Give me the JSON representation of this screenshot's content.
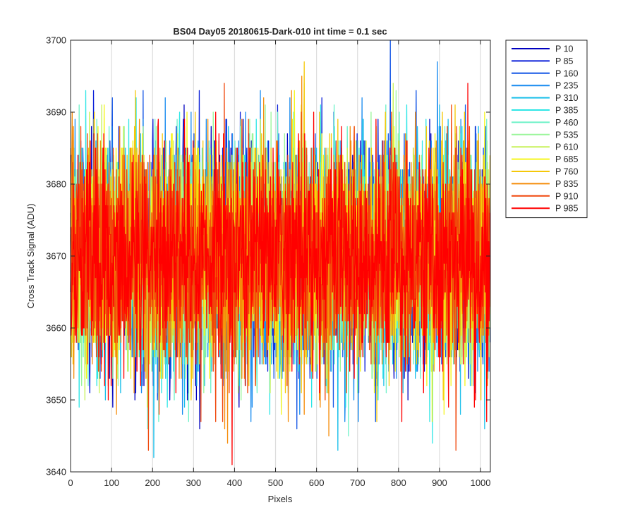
{
  "chart_data": {
    "type": "line",
    "title": "BS04 Day05 20180615-Dark-010 int time = 0.1 sec",
    "xlabel": "Pixels",
    "ylabel": "Cross Track Signal (ADU)",
    "xlim": [
      0,
      1024
    ],
    "ylim": [
      3640,
      3700
    ],
    "xticks": [
      0,
      100,
      200,
      300,
      400,
      500,
      600,
      700,
      800,
      900,
      1000
    ],
    "yticks": [
      3640,
      3650,
      3660,
      3670,
      3680,
      3690,
      3700
    ],
    "grid": "vertical",
    "legend_position": "outside-top-right",
    "noise_summary": {
      "mean": 3670,
      "min": 3641,
      "max": 3700,
      "points_per_series": 1024
    },
    "series": [
      {
        "name": "P 10",
        "color": "#0000bf"
      },
      {
        "name": "P 85",
        "color": "#0a1fd9"
      },
      {
        "name": "P 160",
        "color": "#1456e6"
      },
      {
        "name": "P 235",
        "color": "#1a8cf0"
      },
      {
        "name": "P 310",
        "color": "#1abfea"
      },
      {
        "name": "P 385",
        "color": "#2ee6e6"
      },
      {
        "name": "P 460",
        "color": "#6cf2c8"
      },
      {
        "name": "P 535",
        "color": "#9af59a"
      },
      {
        "name": "P 610",
        "color": "#c8f25a"
      },
      {
        "name": "P 685",
        "color": "#f5f51a"
      },
      {
        "name": "P 760",
        "color": "#f5c80a"
      },
      {
        "name": "P 835",
        "color": "#f58c0a"
      },
      {
        "name": "P 910",
        "color": "#f0460a"
      },
      {
        "name": "P 985",
        "color": "#ff0000"
      }
    ]
  }
}
